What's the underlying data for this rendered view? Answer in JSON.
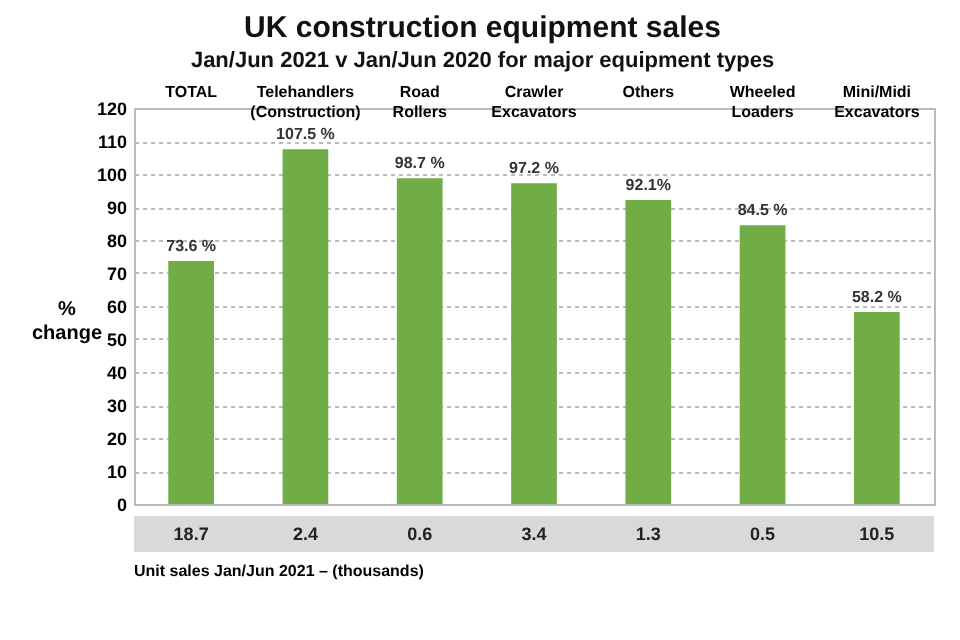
{
  "chart_data": {
    "type": "bar",
    "title": "UK construction equipment sales",
    "subtitle": "Jan/Jun 2021  v  Jan/Jun 2020 for major equipment types",
    "ylabel": "% change",
    "categories": [
      "TOTAL",
      "Telehandlers (Construction)",
      "Road Rollers",
      "Crawler Excavators",
      "Others",
      "Wheeled Loaders",
      "Mini/Midi Excavators"
    ],
    "values": [
      73.6,
      107.5,
      98.7,
      97.2,
      92.1,
      84.5,
      58.2
    ],
    "value_labels": [
      "73.6 %",
      "107.5 %",
      "98.7 %",
      "97.2 %",
      "92.1%",
      "84.5 %",
      "58.2 %"
    ],
    "color": "#70ad47",
    "ylim": [
      0,
      120
    ],
    "yticks": [
      0,
      10,
      20,
      30,
      40,
      50,
      60,
      70,
      80,
      90,
      100,
      110,
      120
    ],
    "grid": "y",
    "annotations": [
      "18.7",
      "2.4",
      "0.6",
      "3.4",
      "1.3",
      "0.5",
      "10.5",
      "Unit sales Jan/Jun 2021 – (thousands)"
    ]
  }
}
